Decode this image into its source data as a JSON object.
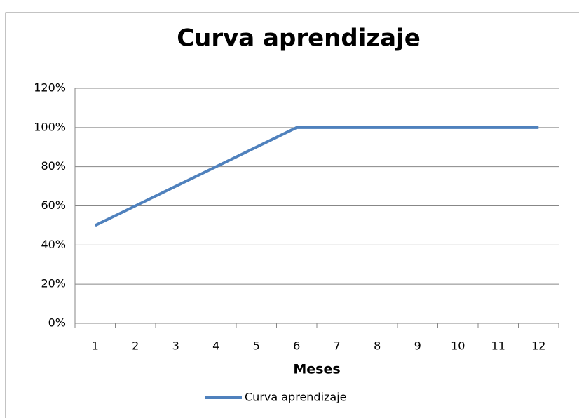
{
  "chart_data": {
    "type": "line",
    "title": "Curva aprendizaje",
    "x_label": "Meses",
    "categories": [
      "1",
      "2",
      "3",
      "4",
      "5",
      "6",
      "7",
      "8",
      "9",
      "10",
      "11",
      "12"
    ],
    "series": [
      {
        "name": "Curva aprendizaje",
        "color": "#4f81bd",
        "values": [
          50,
          60,
          70,
          80,
          90,
          100,
          100,
          100,
          100,
          100,
          100,
          100
        ]
      }
    ],
    "ylim": [
      0,
      120
    ],
    "yticks": [
      {
        "value": 0,
        "label": "0%"
      },
      {
        "value": 20,
        "label": "20%"
      },
      {
        "value": 40,
        "label": "40%"
      },
      {
        "value": 60,
        "label": "60%"
      },
      {
        "value": 80,
        "label": "80%"
      },
      {
        "value": 100,
        "label": "100%"
      },
      {
        "value": 120,
        "label": "120%"
      }
    ],
    "grid": true,
    "legend": "bottom"
  }
}
